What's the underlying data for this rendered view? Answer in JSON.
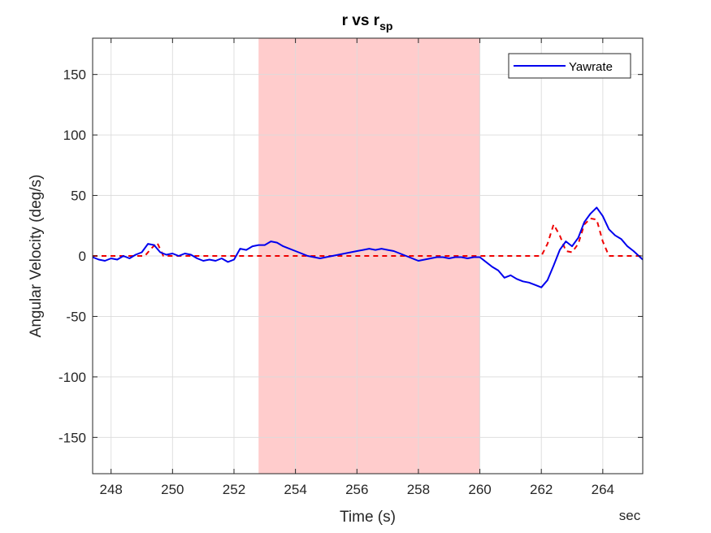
{
  "chart_data": {
    "type": "line",
    "title": "r vs r",
    "title_subscript": "sp",
    "xlabel": "Time (s)",
    "ylabel": "Angular Velocity (deg/s)",
    "x_unit_label": "sec",
    "xlim": [
      247.4,
      265.3
    ],
    "ylim": [
      -180,
      180
    ],
    "xticks": [
      248,
      250,
      252,
      254,
      256,
      258,
      260,
      262,
      264
    ],
    "yticks": [
      -150,
      -100,
      -50,
      0,
      50,
      100,
      150
    ],
    "grid": true,
    "legend": {
      "position": "top-right",
      "entries": [
        "Yawrate"
      ]
    },
    "shaded_region": {
      "x_start": 252.8,
      "x_end": 260.0,
      "color": "#ffcccc"
    },
    "colors": {
      "yawrate": "#0000ee",
      "setpoint": "#ee0000",
      "axes": "#262626",
      "grid": "#dcdcdc"
    },
    "series": [
      {
        "name": "Yawrate",
        "style": "solid",
        "color": "#0000ee",
        "x": [
          247.4,
          247.6,
          247.8,
          248.0,
          248.2,
          248.4,
          248.6,
          248.8,
          249.0,
          249.2,
          249.4,
          249.6,
          249.8,
          250.0,
          250.2,
          250.4,
          250.6,
          250.8,
          251.0,
          251.2,
          251.4,
          251.6,
          251.8,
          252.0,
          252.2,
          252.4,
          252.6,
          252.8,
          253.0,
          253.2,
          253.4,
          253.6,
          253.8,
          254.0,
          254.2,
          254.4,
          254.6,
          254.8,
          255.0,
          255.2,
          255.4,
          255.6,
          255.8,
          256.0,
          256.2,
          256.4,
          256.6,
          256.8,
          257.0,
          257.2,
          257.4,
          257.6,
          257.8,
          258.0,
          258.2,
          258.4,
          258.6,
          258.8,
          259.0,
          259.2,
          259.4,
          259.6,
          259.8,
          260.0,
          260.2,
          260.4,
          260.6,
          260.8,
          261.0,
          261.2,
          261.4,
          261.6,
          261.8,
          262.0,
          262.2,
          262.4,
          262.6,
          262.8,
          263.0,
          263.2,
          263.4,
          263.6,
          263.8,
          264.0,
          264.2,
          264.4,
          264.6,
          264.8,
          265.0,
          265.3
        ],
        "y": [
          -1,
          -3,
          -4,
          -2,
          -3,
          0,
          -2,
          1,
          3,
          10,
          9,
          3,
          1,
          2,
          0,
          2,
          1,
          -2,
          -4,
          -3,
          -4,
          -2,
          -5,
          -3,
          6,
          5,
          8,
          9,
          9,
          12,
          11,
          8,
          6,
          4,
          2,
          0,
          -1,
          -2,
          -1,
          0,
          1,
          2,
          3,
          4,
          5,
          6,
          5,
          6,
          5,
          4,
          2,
          0,
          -2,
          -4,
          -3,
          -2,
          -1,
          -1,
          -2,
          -1,
          -1,
          -2,
          -1,
          -1,
          -5,
          -9,
          -12,
          -18,
          -16,
          -19,
          -21,
          -22,
          -24,
          -26,
          -20,
          -8,
          5,
          12,
          8,
          15,
          28,
          35,
          40,
          33,
          22,
          17,
          14,
          8,
          4,
          -3
        ]
      },
      {
        "name": "",
        "style": "dashed",
        "color": "#ee0000",
        "x": [
          247.4,
          249.1,
          249.3,
          249.5,
          249.7,
          262.0,
          262.2,
          262.4,
          262.6,
          262.8,
          263.0,
          263.2,
          263.4,
          263.6,
          263.8,
          264.0,
          264.2,
          265.3
        ],
        "y": [
          0,
          0,
          6,
          11,
          0,
          0,
          10,
          26,
          17,
          4,
          3,
          10,
          26,
          31,
          30,
          12,
          0,
          0
        ]
      }
    ]
  }
}
